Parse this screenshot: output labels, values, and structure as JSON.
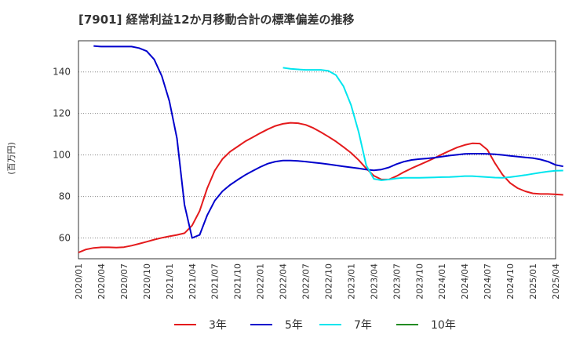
{
  "chart_data": {
    "type": "line",
    "title": "[7901]  経常利益12か月移動合計の標準偏差の推移",
    "ylabel": "(百万円)",
    "xlabel": "",
    "ylim": [
      50,
      155
    ],
    "yticks": [
      60,
      80,
      100,
      120,
      140
    ],
    "grid": "horizontal dotted",
    "legend_position": "bottom-center",
    "x_tick_labels": [
      "2020/01",
      "2020/04",
      "2020/07",
      "2020/10",
      "2021/01",
      "2021/04",
      "2021/07",
      "2021/10",
      "2022/01",
      "2022/04",
      "2022/07",
      "2022/10",
      "2023/01",
      "2023/04",
      "2023/07",
      "2023/10",
      "2024/01",
      "2024/04",
      "2024/07",
      "2024/10",
      "2025/01",
      "2025/04"
    ],
    "x_range_months": [
      0,
      63
    ],
    "series": [
      {
        "name": "3年",
        "color": "#e41a1c",
        "points": [
          [
            0,
            53
          ],
          [
            1,
            54.5
          ],
          [
            2,
            55.2
          ],
          [
            3,
            55.5
          ],
          [
            4,
            55.5
          ],
          [
            5,
            55.4
          ],
          [
            6,
            55.6
          ],
          [
            7,
            56.3
          ],
          [
            8,
            57.2
          ],
          [
            9,
            58.2
          ],
          [
            10,
            59.2
          ],
          [
            11,
            60.1
          ],
          [
            12,
            60.8
          ],
          [
            13,
            61.5
          ],
          [
            14,
            62.3
          ],
          [
            15,
            66
          ],
          [
            16,
            73
          ],
          [
            17,
            84
          ],
          [
            18,
            92.5
          ],
          [
            19,
            98
          ],
          [
            20,
            101.5
          ],
          [
            21,
            104
          ],
          [
            22,
            106.5
          ],
          [
            23,
            108.5
          ],
          [
            24,
            110.5
          ],
          [
            25,
            112.4
          ],
          [
            26,
            114
          ],
          [
            27,
            115
          ],
          [
            28,
            115.5
          ],
          [
            29,
            115.3
          ],
          [
            30,
            114.5
          ],
          [
            31,
            113
          ],
          [
            32,
            111
          ],
          [
            33,
            108.8
          ],
          [
            34,
            106.5
          ],
          [
            35,
            103.8
          ],
          [
            36,
            101
          ],
          [
            37,
            97.5
          ],
          [
            38,
            93.5
          ],
          [
            39,
            90
          ],
          [
            40,
            88.2
          ],
          [
            41,
            88.2
          ],
          [
            42,
            89.8
          ],
          [
            43,
            91.8
          ],
          [
            44,
            93.6
          ],
          [
            45,
            95.2
          ],
          [
            46,
            96.8
          ],
          [
            47,
            98.5
          ],
          [
            48,
            100.3
          ],
          [
            49,
            102
          ],
          [
            50,
            103.6
          ],
          [
            51,
            104.8
          ],
          [
            52,
            105.6
          ],
          [
            53,
            105.5
          ],
          [
            54,
            102.5
          ],
          [
            55,
            96
          ],
          [
            56,
            90.5
          ],
          [
            57,
            86.5
          ],
          [
            58,
            84
          ],
          [
            59,
            82.5
          ],
          [
            60,
            81.5
          ],
          [
            61,
            81.2
          ],
          [
            62,
            81.2
          ],
          [
            63,
            81
          ],
          [
            64,
            80.8
          ]
        ]
      },
      {
        "name": "5年",
        "color": "#0000cc",
        "points": [
          [
            2,
            152.5
          ],
          [
            3,
            152.2
          ],
          [
            4,
            152.2
          ],
          [
            5,
            152.2
          ],
          [
            6,
            152.2
          ],
          [
            7,
            152.2
          ],
          [
            8,
            151.5
          ],
          [
            9,
            150
          ],
          [
            10,
            146
          ],
          [
            11,
            138
          ],
          [
            12,
            126
          ],
          [
            13,
            108
          ],
          [
            14,
            76
          ],
          [
            15,
            60
          ],
          [
            16,
            61.5
          ],
          [
            17,
            71
          ],
          [
            18,
            78
          ],
          [
            19,
            82.5
          ],
          [
            20,
            85.5
          ],
          [
            21,
            88
          ],
          [
            22,
            90.3
          ],
          [
            23,
            92.3
          ],
          [
            24,
            94.2
          ],
          [
            25,
            95.8
          ],
          [
            26,
            96.8
          ],
          [
            27,
            97.3
          ],
          [
            28,
            97.3
          ],
          [
            29,
            97.1
          ],
          [
            30,
            96.8
          ],
          [
            31,
            96.4
          ],
          [
            32,
            96
          ],
          [
            33,
            95.5
          ],
          [
            34,
            95
          ],
          [
            35,
            94.5
          ],
          [
            36,
            94
          ],
          [
            37,
            93.5
          ],
          [
            38,
            93
          ],
          [
            39,
            92.6
          ],
          [
            40,
            93
          ],
          [
            41,
            94
          ],
          [
            42,
            95.6
          ],
          [
            43,
            96.8
          ],
          [
            44,
            97.6
          ],
          [
            45,
            98
          ],
          [
            46,
            98.3
          ],
          [
            47,
            98.7
          ],
          [
            48,
            99.2
          ],
          [
            49,
            99.7
          ],
          [
            50,
            100.1
          ],
          [
            51,
            100.5
          ],
          [
            52,
            100.6
          ],
          [
            53,
            100.6
          ],
          [
            54,
            100.5
          ],
          [
            55,
            100.3
          ],
          [
            56,
            100
          ],
          [
            57,
            99.6
          ],
          [
            58,
            99.2
          ],
          [
            59,
            98.8
          ],
          [
            60,
            98.5
          ],
          [
            61,
            97.8
          ],
          [
            62,
            96.8
          ],
          [
            63,
            95.2
          ],
          [
            64,
            94.5
          ]
        ]
      },
      {
        "name": "7年",
        "color": "#00e5ee",
        "points": [
          [
            27,
            142
          ],
          [
            28,
            141.5
          ],
          [
            29,
            141.2
          ],
          [
            30,
            141
          ],
          [
            31,
            141
          ],
          [
            32,
            141
          ],
          [
            33,
            140.5
          ],
          [
            34,
            138.5
          ],
          [
            35,
            133
          ],
          [
            36,
            124
          ],
          [
            37,
            111
          ],
          [
            38,
            95
          ],
          [
            39,
            88.5
          ],
          [
            40,
            87.8
          ],
          [
            41,
            88.2
          ],
          [
            42,
            88.7
          ],
          [
            43,
            89
          ],
          [
            44,
            89
          ],
          [
            45,
            89
          ],
          [
            46,
            89.1
          ],
          [
            47,
            89.2
          ],
          [
            48,
            89.3
          ],
          [
            49,
            89.4
          ],
          [
            50,
            89.6
          ],
          [
            51,
            89.8
          ],
          [
            52,
            89.8
          ],
          [
            53,
            89.6
          ],
          [
            54,
            89.3
          ],
          [
            55,
            89.1
          ],
          [
            56,
            89
          ],
          [
            57,
            89.3
          ],
          [
            58,
            89.8
          ],
          [
            59,
            90.3
          ],
          [
            60,
            90.9
          ],
          [
            61,
            91.5
          ],
          [
            62,
            92
          ],
          [
            63,
            92.4
          ],
          [
            64,
            92.5
          ]
        ]
      },
      {
        "name": "10年",
        "color": "#228b22",
        "points": []
      }
    ]
  }
}
